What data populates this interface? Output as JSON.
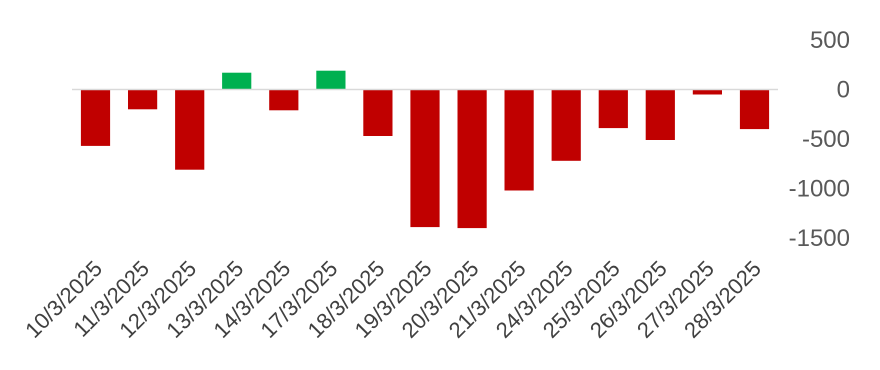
{
  "chart_data": {
    "type": "bar",
    "title": "",
    "xlabel": "",
    "ylabel": "",
    "categories": [
      "10/3/2025",
      "11/3/2025",
      "12/3/2025",
      "13/3/2025",
      "14/3/2025",
      "17/3/2025",
      "18/3/2025",
      "19/3/2025",
      "20/3/2025",
      "21/3/2025",
      "24/3/2025",
      "25/3/2025",
      "26/3/2025",
      "27/3/2025",
      "28/3/2025"
    ],
    "values": [
      -570,
      -200,
      -810,
      170,
      -210,
      190,
      -470,
      -1390,
      -1400,
      -1020,
      -720,
      -390,
      -510,
      -50,
      -400
    ],
    "ylim": [
      -1500,
      500
    ],
    "yticks": [
      500,
      0,
      -500,
      -1000,
      -1500
    ],
    "grid": false,
    "legend": "none",
    "axis_position": "right",
    "colors": {
      "positive": "#00b050",
      "negative": "#c00000"
    }
  }
}
